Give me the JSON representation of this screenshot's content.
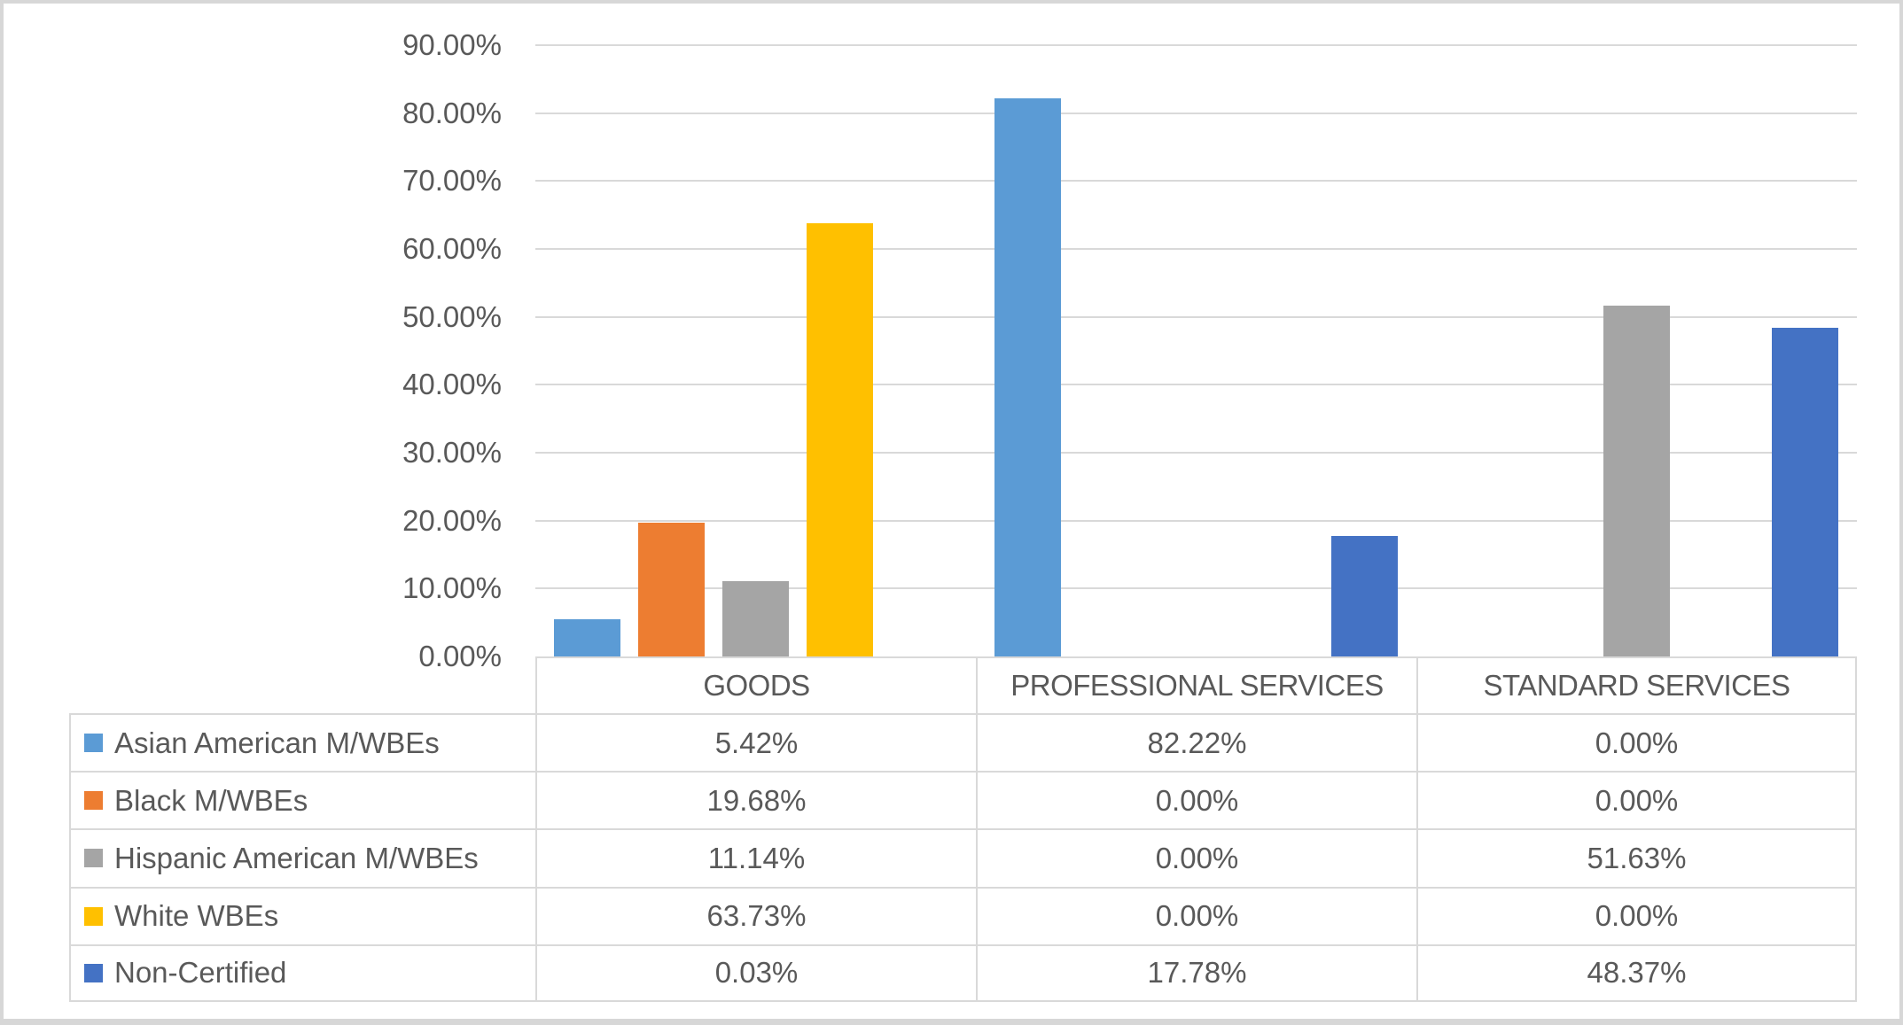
{
  "chart_data": {
    "type": "bar",
    "categories": [
      "GOODS",
      "PROFESSIONAL SERVICES",
      "STANDARD SERVICES"
    ],
    "series": [
      {
        "name": "Asian American M/WBEs",
        "color": "#5B9BD5",
        "values": [
          5.42,
          82.22,
          0.0
        ]
      },
      {
        "name": "Black M/WBEs",
        "color": "#ED7D31",
        "values": [
          19.68,
          0.0,
          0.0
        ]
      },
      {
        "name": "Hispanic American M/WBEs",
        "color": "#A5A5A5",
        "values": [
          11.14,
          0.0,
          51.63
        ]
      },
      {
        "name": "White WBEs",
        "color": "#FFC000",
        "values": [
          63.73,
          0.0,
          0.0
        ]
      },
      {
        "name": "Non-Certified",
        "color": "#4472C4",
        "values": [
          0.03,
          17.78,
          48.37
        ]
      }
    ],
    "y_axis": {
      "min": 0,
      "max": 90,
      "step": 10,
      "tick_values": [
        90,
        80,
        70,
        60,
        50,
        40,
        30,
        20,
        10,
        0
      ],
      "tick_labels": [
        "90.00%",
        "80.00%",
        "70.00%",
        "60.00%",
        "50.00%",
        "40.00%",
        "30.00%",
        "20.00%",
        "10.00%",
        "0.00%"
      ],
      "format": "percent"
    },
    "grid": true,
    "gridline_orientation": "horizontal",
    "legend_position": "data-table-left-column",
    "data_table": {
      "column_headers": [
        "GOODS",
        "PROFESSIONAL SERVICES",
        "STANDARD SERVICES"
      ],
      "rows": [
        {
          "label": "Asian American M/WBEs",
          "cells": [
            "5.42%",
            "82.22%",
            "0.00%"
          ]
        },
        {
          "label": "Black M/WBEs",
          "cells": [
            "19.68%",
            "0.00%",
            "0.00%"
          ]
        },
        {
          "label": "Hispanic American M/WBEs",
          "cells": [
            "11.14%",
            "0.00%",
            "51.63%"
          ]
        },
        {
          "label": "White WBEs",
          "cells": [
            "63.73%",
            "0.00%",
            "0.00%"
          ]
        },
        {
          "label": "Non-Certified",
          "cells": [
            "0.03%",
            "17.78%",
            "48.37%"
          ]
        }
      ]
    },
    "style": {
      "text_color": "#595959",
      "gridline_color": "#D9D9D9",
      "table_border_color": "#D9D9D9",
      "frame_color": "#D7D7D7",
      "background": "#FFFFFF"
    }
  }
}
